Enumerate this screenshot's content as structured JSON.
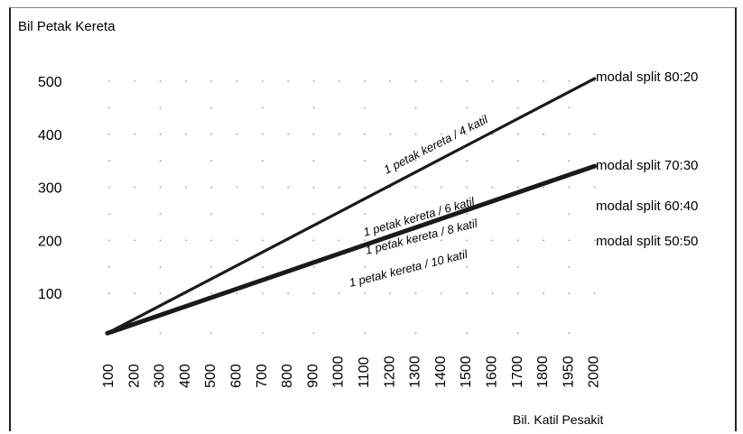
{
  "chart_data": {
    "type": "line",
    "title": "",
    "ylabel": "Bil Petak Kereta",
    "xlabel": "Bil. Katil Pesakit",
    "x_tick_labels": [
      "100",
      "200",
      "300",
      "400",
      "500",
      "600",
      "700",
      "800",
      "900",
      "1000",
      "1100",
      "1200",
      "1300",
      "1400",
      "1500",
      "1600",
      "1700",
      "1800",
      "1950",
      "2000"
    ],
    "y_ticks": [
      100,
      200,
      300,
      400,
      500
    ],
    "ylim": [
      0,
      560
    ],
    "grid": "dotted",
    "series": [
      {
        "name": "modal split 80:20",
        "start": {
          "x": "100",
          "y": 25
        },
        "end": {
          "x": "2000",
          "y": 505
        },
        "color": "#1a1a1a",
        "weight": "thin"
      },
      {
        "name": "modal split 70:30",
        "start": {
          "x": "100",
          "y": 25
        },
        "end": {
          "x": "2000",
          "y": 340
        },
        "color": "#1a1a1a",
        "weight": "thick"
      }
    ],
    "legend_labels": [
      "modal split 80:20",
      "modal split 70:30",
      "modal split 60:40",
      "modal split 50:50"
    ],
    "annotations": [
      "1 petak kereta / 4 katil",
      "1 petak kereta / 6 katil",
      "1 petak kereta / 8 katil",
      "1 petak kereta / 10 katil"
    ]
  }
}
